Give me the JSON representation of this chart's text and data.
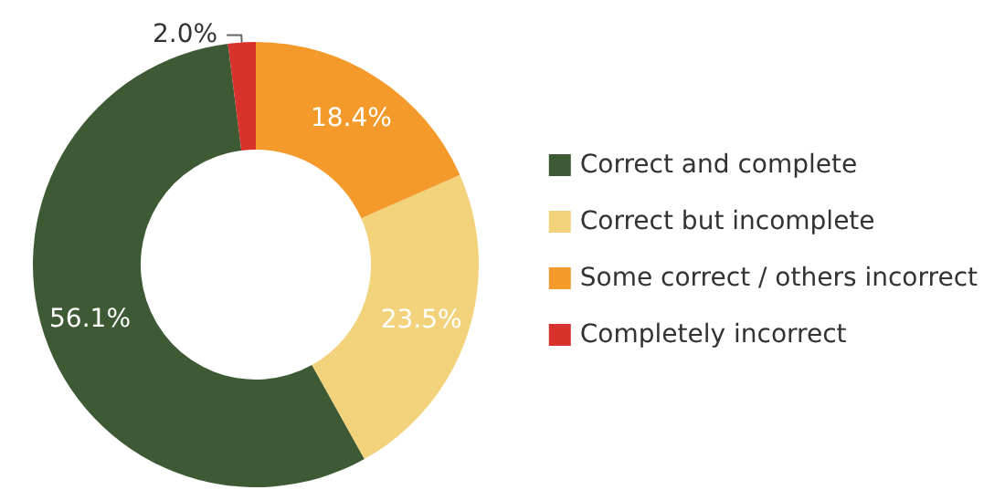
{
  "chart_data": {
    "type": "donut",
    "categories": [
      "Correct and complete",
      "Correct but incomplete",
      "Some correct / others incorrect",
      "Completely incorrect"
    ],
    "values": [
      56.1,
      23.5,
      18.4,
      2.0
    ],
    "colors": [
      "#3d5a35",
      "#f2d27a",
      "#f39a2b",
      "#d8322c"
    ],
    "value_labels": [
      "56.1%",
      "23.5%",
      "18.4%",
      "2.0%"
    ],
    "legend": "right"
  }
}
